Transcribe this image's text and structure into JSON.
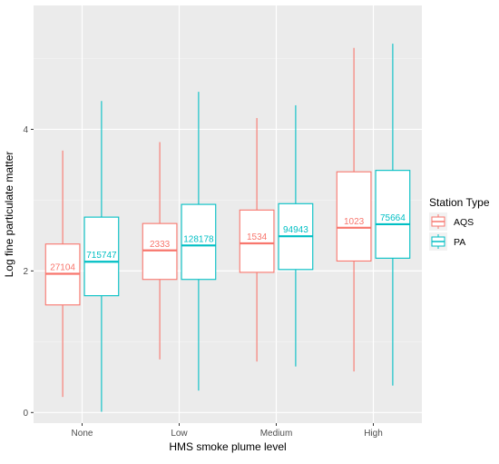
{
  "chart_data": {
    "type": "boxplot",
    "title": "",
    "xlabel": "HMS smoke plume level",
    "ylabel": "Log fine particulate matter",
    "categories": [
      "None",
      "Low",
      "Medium",
      "High"
    ],
    "ylim": [
      -0.15,
      5.75
    ],
    "yticks": [
      0,
      2,
      4
    ],
    "grid": true,
    "legend": {
      "title": "Station Type",
      "position": "right"
    },
    "series": [
      {
        "name": "AQS",
        "color": "#F8766D",
        "boxes": [
          {
            "category": "None",
            "min": 0.22,
            "q1": 1.52,
            "median": 1.96,
            "q3": 2.38,
            "max": 3.7,
            "n": "27104"
          },
          {
            "category": "Low",
            "min": 0.75,
            "q1": 1.88,
            "median": 2.29,
            "q3": 2.67,
            "max": 3.82,
            "n": "2333"
          },
          {
            "category": "Medium",
            "min": 0.72,
            "q1": 1.98,
            "median": 2.39,
            "q3": 2.86,
            "max": 4.16,
            "n": "1534"
          },
          {
            "category": "High",
            "min": 0.58,
            "q1": 2.14,
            "median": 2.61,
            "q3": 3.4,
            "max": 5.15,
            "n": "1023"
          }
        ]
      },
      {
        "name": "PA",
        "color": "#00BFC4",
        "boxes": [
          {
            "category": "None",
            "min": 0.01,
            "q1": 1.65,
            "median": 2.13,
            "q3": 2.76,
            "max": 4.4,
            "n": "715747"
          },
          {
            "category": "Low",
            "min": 0.31,
            "q1": 1.88,
            "median": 2.36,
            "q3": 2.94,
            "max": 4.53,
            "n": "128178"
          },
          {
            "category": "Medium",
            "min": 0.65,
            "q1": 2.02,
            "median": 2.49,
            "q3": 2.95,
            "max": 4.34,
            "n": "94943"
          },
          {
            "category": "High",
            "min": 0.38,
            "q1": 2.18,
            "median": 2.66,
            "q3": 3.42,
            "max": 5.21,
            "n": "75664"
          }
        ]
      }
    ]
  }
}
